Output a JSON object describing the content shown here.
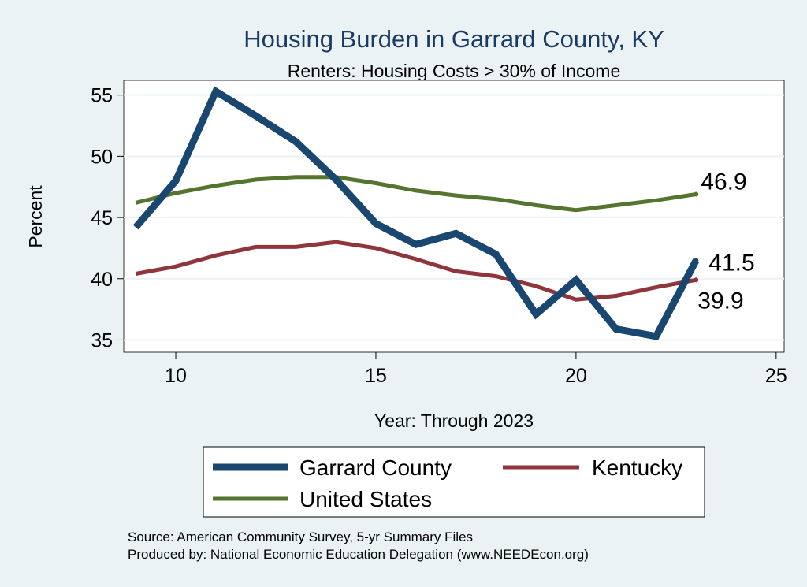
{
  "chart_data": {
    "type": "line",
    "title": "Housing Burden in Garrard County, KY",
    "subtitle": "Renters: Housing Costs > 30% of Income",
    "xlabel": "Year: Through 2023",
    "ylabel": "Percent",
    "xlim": [
      8.7,
      25.2
    ],
    "ylim": [
      34.0,
      56.2
    ],
    "x_ticks": [
      10,
      15,
      20,
      25
    ],
    "y_ticks": [
      35,
      40,
      45,
      50,
      55
    ],
    "grid": true,
    "legend_position": "bottom",
    "series": [
      {
        "name": "Garrard County",
        "color": "#1a476f",
        "x": [
          9,
          10,
          11,
          12,
          13,
          14,
          15,
          16,
          17,
          18,
          19,
          20,
          21,
          22,
          23
        ],
        "values": [
          44.2,
          48.0,
          55.3,
          53.3,
          51.2,
          48.1,
          44.5,
          42.8,
          43.7,
          42.0,
          37.1,
          39.9,
          35.9,
          35.3,
          41.5
        ],
        "end_label": "41.5"
      },
      {
        "name": "Kentucky",
        "color": "#90353b",
        "x": [
          9,
          10,
          11,
          12,
          13,
          14,
          15,
          16,
          17,
          18,
          19,
          20,
          21,
          22,
          23
        ],
        "values": [
          40.4,
          41.0,
          41.9,
          42.6,
          42.6,
          43.0,
          42.5,
          41.6,
          40.6,
          40.2,
          39.4,
          38.3,
          38.6,
          39.3,
          39.9
        ],
        "end_label": "39.9"
      },
      {
        "name": "United States",
        "color": "#55752f",
        "x": [
          9,
          10,
          11,
          12,
          13,
          14,
          15,
          16,
          17,
          18,
          19,
          20,
          21,
          22,
          23
        ],
        "values": [
          46.2,
          47.0,
          47.6,
          48.1,
          48.3,
          48.3,
          47.8,
          47.2,
          46.8,
          46.5,
          46.0,
          45.6,
          46.0,
          46.4,
          46.9
        ],
        "end_label": "46.9"
      }
    ],
    "annotations": [
      "Source: American Community Survey, 5-yr Summary Files",
      "Produced by: National Economic Education Delegation (www.NEEDEcon.org)"
    ]
  }
}
